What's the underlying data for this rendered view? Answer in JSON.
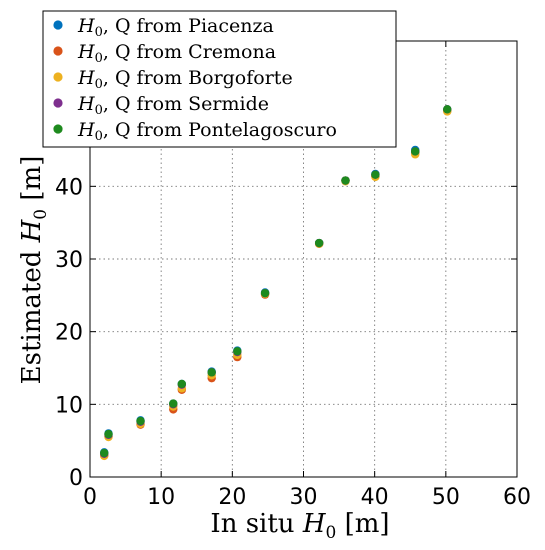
{
  "chart_data": {
    "type": "scatter",
    "xlabel_prefix": "In situ ",
    "xlabel_sym": "H",
    "xlabel_sub": "0",
    "xlabel_unit": " [m]",
    "ylabel_prefix": "Estimated ",
    "ylabel_sym": "H",
    "ylabel_sub": "0",
    "ylabel_unit": " [m]",
    "xlim": [
      0,
      60
    ],
    "ylim": [
      0,
      60
    ],
    "xticks": [
      "0",
      "10",
      "20",
      "30",
      "40",
      "50",
      "60"
    ],
    "yticks": [
      "0",
      "10",
      "20",
      "30",
      "40"
    ],
    "grid": true,
    "legend_position": "top-left",
    "x": [
      2.0,
      2.6,
      7.1,
      11.7,
      12.9,
      17.1,
      20.7,
      24.6,
      32.2,
      35.9,
      40.1,
      45.7,
      50.2
    ],
    "series": [
      {
        "legend": "H₀, Q from Piacenza",
        "sym": "H",
        "sub": "0",
        "rest": ", Q from Piacenza",
        "color": "#0072BD",
        "values": [
          3.4,
          6.0,
          7.8,
          10.1,
          12.8,
          14.5,
          17.4,
          25.4,
          32.2,
          40.8,
          41.7,
          45.0,
          50.6
        ]
      },
      {
        "legend": "H₀, Q from Cremona",
        "sym": "H",
        "sub": "0",
        "rest": ", Q from Cremona",
        "color": "#D95319",
        "values": [
          3.0,
          5.6,
          7.2,
          9.3,
          12.0,
          13.6,
          16.5,
          25.1,
          32.1,
          40.8,
          41.4,
          44.6,
          50.4
        ]
      },
      {
        "legend": "H₀, Q from Borgoforte",
        "sym": "H",
        "sub": "0",
        "rest": ", Q from Borgoforte",
        "color": "#EDB120",
        "values": [
          2.9,
          5.5,
          7.3,
          9.7,
          12.2,
          14.0,
          16.8,
          25.2,
          32.1,
          40.7,
          41.3,
          44.4,
          50.3
        ]
      },
      {
        "legend": "H₀, Q from Sermide",
        "sym": "H",
        "sub": "0",
        "rest": ", Q from Sermide",
        "color": "#7E2F8E",
        "values": [
          3.2,
          5.8,
          7.6,
          10.0,
          12.7,
          14.4,
          17.2,
          25.3,
          32.2,
          40.8,
          41.6,
          44.8,
          50.6
        ]
      },
      {
        "legend": "H₀, Q from Pontelagoscuro",
        "sym": "H",
        "sub": "0",
        "rest": ", Q from Pontelagoscuro",
        "color": "#1E8A1E",
        "values": [
          3.3,
          5.9,
          7.7,
          10.1,
          12.8,
          14.4,
          17.3,
          25.3,
          32.2,
          40.8,
          41.6,
          44.8,
          50.6
        ]
      }
    ]
  }
}
